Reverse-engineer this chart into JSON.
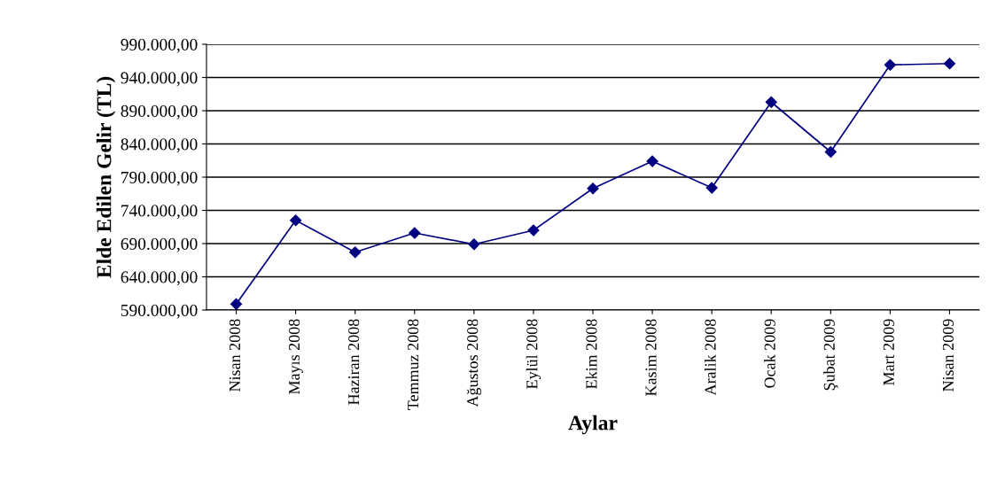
{
  "chart_data": {
    "type": "line",
    "xlabel": "Aylar",
    "ylabel": "Elde Edilen Gelir (TL)",
    "categories": [
      "Nisan 2008",
      "Mayıs 2008",
      "Haziran 2008",
      "Temmuz 2008",
      "Ağustos 2008",
      "Eylül 2008",
      "Ekim 2008",
      "Kasim 2008",
      "Aralik 2008",
      "Ocak 2009",
      "Şubat 2009",
      "Mart 2009",
      "Nisan 2009"
    ],
    "series": [
      {
        "color": "#000080",
        "values": [
          599000,
          725000,
          677000,
          706000,
          689000,
          710000,
          773000,
          814000,
          774000,
          903000,
          828000,
          959000,
          961000
        ]
      }
    ],
    "ylim": [
      590000,
      990000
    ],
    "yticks": [
      {
        "value": 590000,
        "label": "590.000,00"
      },
      {
        "value": 640000,
        "label": "640.000,00"
      },
      {
        "value": 690000,
        "label": "690.000,00"
      },
      {
        "value": 740000,
        "label": "740.000,00"
      },
      {
        "value": 790000,
        "label": "790.000,00"
      },
      {
        "value": 840000,
        "label": "840.000,00"
      },
      {
        "value": 890000,
        "label": "890.000,00"
      },
      {
        "value": 940000,
        "label": "940.000,00"
      },
      {
        "value": 990000,
        "label": "990.000,00"
      }
    ],
    "grid": "y",
    "marker": "diamond",
    "line_style": "solid"
  }
}
